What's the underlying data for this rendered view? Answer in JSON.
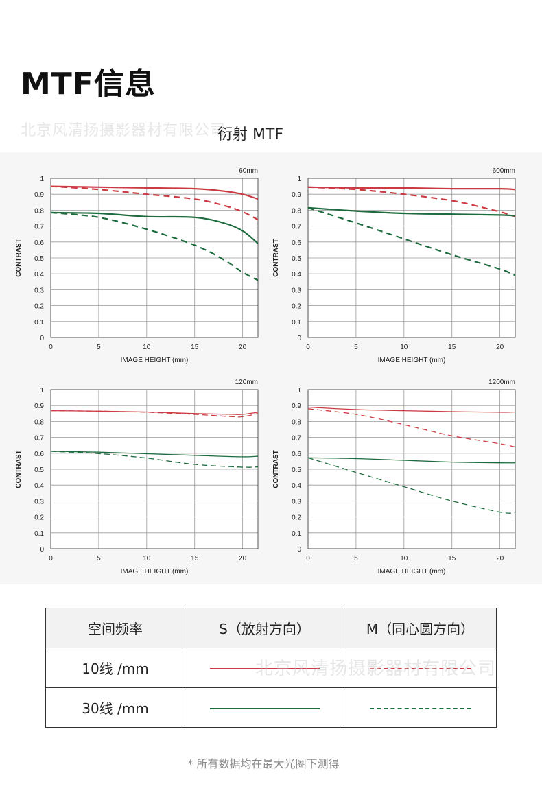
{
  "page": {
    "title": "MTF信息",
    "watermark": "北京风清扬摄影器材有限公司",
    "section_title": "衍射 MTF",
    "footnote": "* 所有数据均在最大光圈下测得"
  },
  "colors": {
    "red": "#cc3b43",
    "green": "#1d6b3e",
    "grid": "#9a9a9a",
    "frame": "#555555"
  },
  "legend": {
    "header": [
      "空间频率",
      "S（放射方向）",
      "M（同心圆方向）"
    ],
    "rows": [
      {
        "label": "10线 /mm",
        "s_line": "red-solid",
        "m_line": "red-dashed"
      },
      {
        "label": "30线 /mm",
        "s_line": "green-solid",
        "m_line": "green-dashed"
      }
    ]
  },
  "chart_data": [
    {
      "type": "line",
      "title": "60mm",
      "xlabel": "IMAGE HEIGHT (mm)",
      "ylabel": "CONTRAST",
      "xlim": [
        0,
        21.6
      ],
      "ylim": [
        0,
        1
      ],
      "xticks": [
        0,
        5,
        10,
        15,
        20
      ],
      "yticks": [
        0,
        0.1,
        0.2,
        0.3,
        0.4,
        0.5,
        0.6,
        0.7,
        0.8,
        0.9,
        1
      ],
      "grid": true,
      "series": [
        {
          "color": "red",
          "style": "solid",
          "thick": true,
          "x": [
            0,
            5,
            10,
            15,
            18,
            20,
            21.6
          ],
          "y": [
            0.95,
            0.945,
            0.94,
            0.935,
            0.92,
            0.9,
            0.87
          ]
        },
        {
          "color": "red",
          "style": "dashed",
          "thick": true,
          "x": [
            0,
            5,
            10,
            15,
            18,
            20,
            21.6
          ],
          "y": [
            0.95,
            0.93,
            0.9,
            0.87,
            0.83,
            0.79,
            0.74
          ]
        },
        {
          "color": "green",
          "style": "solid",
          "thick": true,
          "x": [
            0,
            5,
            10,
            15,
            18,
            20,
            21.6
          ],
          "y": [
            0.785,
            0.78,
            0.76,
            0.755,
            0.72,
            0.67,
            0.59
          ]
        },
        {
          "color": "green",
          "style": "dashed",
          "thick": true,
          "x": [
            0,
            5,
            10,
            15,
            18,
            20,
            21.6
          ],
          "y": [
            0.785,
            0.755,
            0.68,
            0.58,
            0.49,
            0.41,
            0.36
          ]
        }
      ]
    },
    {
      "type": "line",
      "title": "600mm",
      "xlabel": "IMAGE HEIGHT (mm)",
      "ylabel": "CONTRAST",
      "xlim": [
        0,
        21.6
      ],
      "ylim": [
        0,
        1
      ],
      "xticks": [
        0,
        5,
        10,
        15,
        20
      ],
      "yticks": [
        0,
        0.1,
        0.2,
        0.3,
        0.4,
        0.5,
        0.6,
        0.7,
        0.8,
        0.9,
        1
      ],
      "grid": true,
      "series": [
        {
          "color": "red",
          "style": "solid",
          "thick": true,
          "x": [
            0,
            5,
            10,
            15,
            20,
            21.6
          ],
          "y": [
            0.945,
            0.94,
            0.94,
            0.935,
            0.935,
            0.93
          ]
        },
        {
          "color": "red",
          "style": "dashed",
          "thick": true,
          "x": [
            0,
            5,
            10,
            15,
            18,
            20,
            21.6
          ],
          "y": [
            0.945,
            0.93,
            0.9,
            0.86,
            0.82,
            0.79,
            0.76
          ]
        },
        {
          "color": "green",
          "style": "solid",
          "thick": true,
          "x": [
            0,
            5,
            10,
            15,
            20,
            21.6
          ],
          "y": [
            0.815,
            0.795,
            0.78,
            0.775,
            0.77,
            0.765
          ]
        },
        {
          "color": "green",
          "style": "dashed",
          "thick": true,
          "x": [
            0,
            5,
            10,
            15,
            20,
            21.6
          ],
          "y": [
            0.815,
            0.72,
            0.62,
            0.52,
            0.43,
            0.39
          ]
        }
      ]
    },
    {
      "type": "line",
      "title": "120mm",
      "xlabel": "IMAGE HEIGHT (mm)",
      "ylabel": "CONTRAST",
      "xlim": [
        0,
        21.6
      ],
      "ylim": [
        0,
        1
      ],
      "xticks": [
        0,
        5,
        10,
        15,
        20
      ],
      "yticks": [
        0,
        0.1,
        0.2,
        0.3,
        0.4,
        0.5,
        0.6,
        0.7,
        0.8,
        0.9,
        1
      ],
      "grid": true,
      "series": [
        {
          "color": "red",
          "style": "solid",
          "thick": false,
          "x": [
            0,
            5,
            10,
            15,
            19,
            20,
            21.6
          ],
          "y": [
            0.868,
            0.865,
            0.86,
            0.85,
            0.845,
            0.845,
            0.858
          ]
        },
        {
          "color": "red",
          "style": "dashed",
          "thick": false,
          "x": [
            0,
            5,
            10,
            15,
            19,
            20,
            21.6
          ],
          "y": [
            0.868,
            0.865,
            0.858,
            0.845,
            0.83,
            0.83,
            0.85
          ]
        },
        {
          "color": "green",
          "style": "solid",
          "thick": false,
          "x": [
            0,
            5,
            10,
            15,
            20,
            21.6
          ],
          "y": [
            0.612,
            0.607,
            0.597,
            0.587,
            0.578,
            0.582
          ]
        },
        {
          "color": "green",
          "style": "dashed",
          "thick": false,
          "x": [
            0,
            5,
            10,
            15,
            20,
            21.6
          ],
          "y": [
            0.612,
            0.598,
            0.57,
            0.53,
            0.513,
            0.515
          ]
        }
      ]
    },
    {
      "type": "line",
      "title": "1200mm",
      "xlabel": "IMAGE HEIGHT (mm)",
      "ylabel": "CONTRAST",
      "xlim": [
        0,
        21.6
      ],
      "ylim": [
        0,
        1
      ],
      "xticks": [
        0,
        5,
        10,
        15,
        20
      ],
      "yticks": [
        0,
        0.1,
        0.2,
        0.3,
        0.4,
        0.5,
        0.6,
        0.7,
        0.8,
        0.9,
        1
      ],
      "grid": true,
      "series": [
        {
          "color": "red",
          "style": "solid",
          "thick": false,
          "x": [
            0,
            5,
            10,
            15,
            20,
            21.6
          ],
          "y": [
            0.89,
            0.875,
            0.868,
            0.862,
            0.858,
            0.86
          ]
        },
        {
          "color": "red",
          "style": "dashed",
          "thick": false,
          "x": [
            0,
            5,
            10,
            15,
            20,
            21.6
          ],
          "y": [
            0.88,
            0.845,
            0.78,
            0.71,
            0.66,
            0.64
          ]
        },
        {
          "color": "green",
          "style": "solid",
          "thick": false,
          "x": [
            0,
            5,
            10,
            15,
            20,
            21.6
          ],
          "y": [
            0.572,
            0.567,
            0.556,
            0.545,
            0.54,
            0.54
          ]
        },
        {
          "color": "green",
          "style": "dashed",
          "thick": false,
          "x": [
            0,
            5,
            10,
            15,
            20,
            21.6
          ],
          "y": [
            0.572,
            0.48,
            0.39,
            0.3,
            0.23,
            0.225
          ]
        }
      ]
    }
  ]
}
